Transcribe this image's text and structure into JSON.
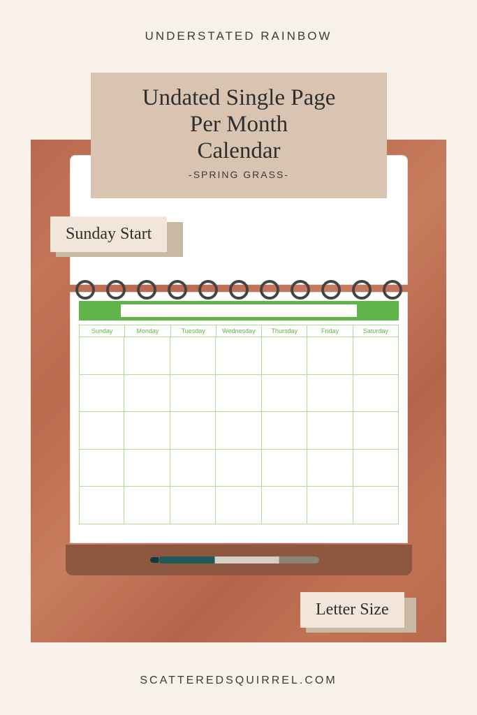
{
  "header": {
    "collection": "UNDERSTATED RAINBOW"
  },
  "title": {
    "line1": "Undated Single Page",
    "line2": "Per Month",
    "line3": "Calendar",
    "subtitle": "-SPRING GRASS-",
    "box_color": "#d8c4b0",
    "text_color": "#2e2e2e"
  },
  "tags": {
    "sunday": "Sunday Start",
    "letter": "Letter Size",
    "bg_color": "#f1e6d9",
    "shadow_color": "#c9b8a4"
  },
  "calendar": {
    "accent_color": "#5fb548",
    "grid_color": "#aedb9a",
    "days": [
      "Sunday",
      "Monday",
      "Tuesday",
      "Wednesday",
      "Thursday",
      "Friday",
      "Saturday"
    ],
    "rows": 5,
    "cols": 7
  },
  "background": {
    "page_color": "#f7f1ea",
    "wood_colors": [
      "#b8684f",
      "#c47558",
      "#bb6a4e",
      "#c87d5e",
      "#b5644a"
    ]
  },
  "notebook": {
    "ring_count": 11,
    "ring_color": "#444444",
    "holder_color": "#8e5840",
    "pen_colors": {
      "barrel": "#1d5a5a",
      "grip": "#d4d0c8",
      "clip": "#8a8578"
    }
  },
  "footer": {
    "site": "SCATTEREDSQUIRREL.COM"
  }
}
